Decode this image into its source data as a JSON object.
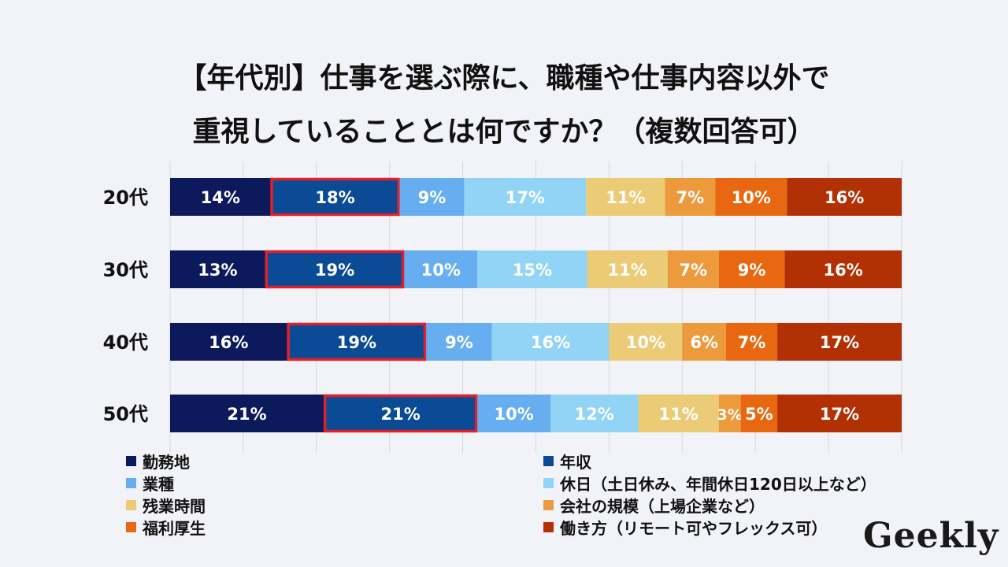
{
  "title_line1": "【年代別】仕事を選ぶ際に、職種や仕事内容以外で",
  "title_line2": "重視していることとは何ですか？（複数回答可）",
  "logo": "Geekly",
  "chart_data": {
    "type": "bar",
    "orientation": "horizontal",
    "stacked": true,
    "normalized": true,
    "grid": true,
    "legend_position": "bottom",
    "categories": [
      "20代",
      "30代",
      "40代",
      "50代"
    ],
    "series": [
      {
        "name": "勤務地",
        "color": "#0c1a5c",
        "values": [
          14,
          13,
          16,
          21
        ]
      },
      {
        "name": "年収",
        "color": "#0b4a94",
        "values": [
          18,
          19,
          19,
          21
        ],
        "highlighted": true,
        "highlight_color": "#e0202a"
      },
      {
        "name": "業種",
        "color": "#66aef0",
        "values": [
          9,
          10,
          9,
          10
        ]
      },
      {
        "name": "休日（土日休み、年間休日120日以上など）",
        "color": "#92d4f6",
        "values": [
          17,
          15,
          16,
          12
        ]
      },
      {
        "name": "残業時間",
        "color": "#ebcb76",
        "values": [
          11,
          11,
          10,
          11
        ]
      },
      {
        "name": "会社の規模（上場企業など）",
        "color": "#ec9a3c",
        "values": [
          7,
          7,
          6,
          3
        ]
      },
      {
        "name": "福利厚生",
        "color": "#e86812",
        "values": [
          10,
          9,
          7,
          5
        ]
      },
      {
        "name": "働き方（リモート可やフレックス可）",
        "color": "#b23104",
        "values": [
          16,
          16,
          17,
          17
        ]
      }
    ]
  }
}
